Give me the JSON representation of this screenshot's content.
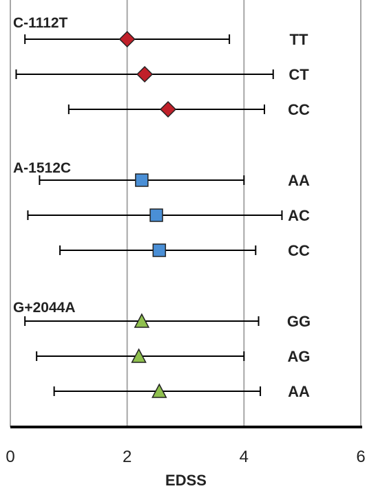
{
  "chart_data": {
    "type": "forest",
    "xlabel": "EDSS",
    "xlim": [
      0,
      6
    ],
    "xticks": [
      "0",
      "2",
      "4",
      "6"
    ],
    "grid": "vertical",
    "groups": [
      {
        "name": "C-1112T",
        "marker": "diamond",
        "color": "#c0202a",
        "rows": [
          {
            "genotype": "TT",
            "mean": 2.0,
            "low": 0.25,
            "high": 3.75
          },
          {
            "genotype": "CT",
            "mean": 2.3,
            "low": 0.1,
            "high": 4.5
          },
          {
            "genotype": "CC",
            "mean": 2.7,
            "low": 1.0,
            "high": 4.35
          }
        ]
      },
      {
        "name": "A-1512C",
        "marker": "square",
        "color": "#4a8fd6",
        "rows": [
          {
            "genotype": "AA",
            "mean": 2.25,
            "low": 0.5,
            "high": 4.0
          },
          {
            "genotype": "AC",
            "mean": 2.5,
            "low": 0.3,
            "high": 4.65
          },
          {
            "genotype": "CC",
            "mean": 2.55,
            "low": 0.85,
            "high": 4.2
          }
        ]
      },
      {
        "name": "G+2044A",
        "marker": "triangle",
        "color": "#8fc04e",
        "rows": [
          {
            "genotype": "GG",
            "mean": 2.25,
            "low": 0.25,
            "high": 4.25
          },
          {
            "genotype": "AG",
            "mean": 2.2,
            "low": 0.45,
            "high": 4.0
          },
          {
            "genotype": "AA",
            "mean": 2.55,
            "low": 0.75,
            "high": 4.28
          }
        ]
      }
    ]
  }
}
